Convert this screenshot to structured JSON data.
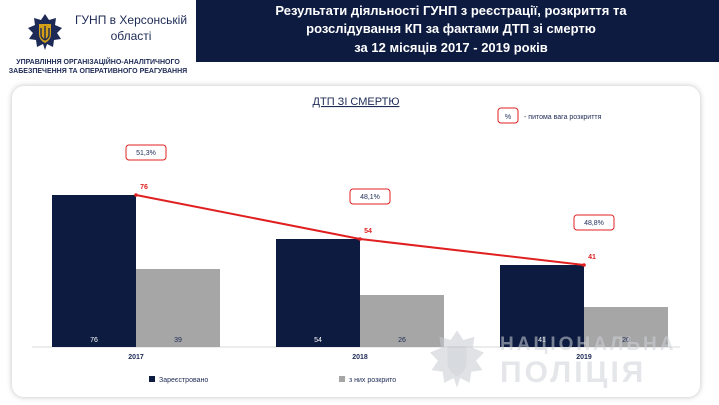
{
  "header": {
    "org_name": "ГУНП в Херсонській області",
    "department": "УПРАВЛІННЯ ОРГАНІЗАЦІЙНО-АНАЛІТИЧНОГО ЗАБЕЗПЕЧЕННЯ ТА ОПЕРАТИВНОГО РЕАГУВАННЯ",
    "title_line1": "Результати діяльності ГУНП з реєстрації, розкриття та",
    "title_line2": "розслідування КП за фактами ДТП зі смертю",
    "title_line3": "за  12 місяців 2017 - 2019 років"
  },
  "watermark": {
    "line1": "НАЦІОНАЛЬНА",
    "line2": "ПОЛІЦІЯ"
  },
  "colors": {
    "header_bg": "#0d1b40",
    "registered": "#0d1b40",
    "solved": "#a6a6a6",
    "trend": "#e02020",
    "title_text": "#1d2a55"
  },
  "chart_data": {
    "type": "bar",
    "title": "ДТП ЗІ СМЕРТЮ",
    "categories": [
      "2017",
      "2018",
      "2019"
    ],
    "series": [
      {
        "name": "Зареєстровано",
        "values": [
          76,
          54,
          41
        ]
      },
      {
        "name": "з них розкрито",
        "values": [
          39,
          26,
          20
        ]
      }
    ],
    "trend_line": {
      "series": "Зареєстровано",
      "values": [
        76,
        54,
        41
      ]
    },
    "percent_labels": [
      "51,3%",
      "48,1%",
      "48,8%"
    ],
    "legend_note": {
      "symbol": "%",
      "text": "- питома вага розкриття"
    },
    "ylim": [
      0,
      90
    ],
    "legend_position": "bottom",
    "grid": false
  }
}
